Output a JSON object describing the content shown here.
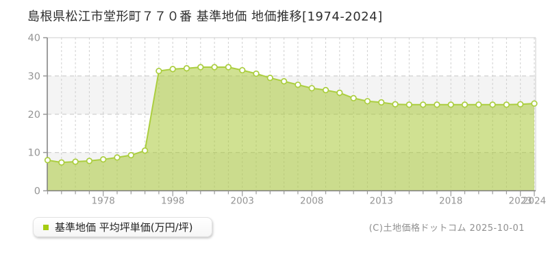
{
  "header": {
    "title": "島根県松江市堂形町７７０番 基準地価 地価推移[1974-2024]"
  },
  "legend": {
    "label": "基準地価 平均坪単価(万円/坪)",
    "marker_color": "#a5cc12"
  },
  "footer": {
    "copyright": "(C)土地価格ドットコム 2025-10-01"
  },
  "colors": {
    "area_fill": "#a9c838",
    "area_fill_opacity": "0.55",
    "line": "#abce3f",
    "point_fill": "#ffffff",
    "point_stroke": "#abce3f",
    "grid": "#cfcfcf",
    "stripe": "#f4f4f4",
    "border": "#cccccc",
    "axis": "#7d7d7d",
    "tick": "#999999",
    "axis_label": "#949494"
  },
  "chart_data": {
    "type": "area",
    "title": "島根県松江市堂形町７７０番 基準地価 地価推移[1974-2024]",
    "series_name": "基準地価 平均坪単価(万円/坪)",
    "ylabel": "万円/坪",
    "ylim": [
      0,
      40
    ],
    "yticks": [
      0,
      10,
      20,
      30,
      40
    ],
    "grid": "dashed",
    "legend_position": "bottom-left",
    "categories": [
      "1974",
      "1975",
      "1976",
      "1977",
      "1978",
      "1979",
      "1980",
      "1996",
      "1997",
      "1998",
      "1999",
      "2000",
      "2001",
      "2002",
      "2003",
      "2004",
      "2005",
      "2006",
      "2007",
      "2008",
      "2009",
      "2010",
      "2011",
      "2012",
      "2013",
      "2014",
      "2015",
      "2016",
      "2017",
      "2018",
      "2019",
      "2020",
      "2021",
      "2022",
      "2023",
      "2024"
    ],
    "values": [
      8.0,
      7.4,
      7.6,
      7.8,
      8.2,
      8.7,
      9.3,
      10.5,
      31.3,
      31.8,
      32.0,
      32.3,
      32.3,
      32.3,
      31.5,
      30.6,
      29.5,
      28.6,
      27.7,
      26.8,
      26.3,
      25.6,
      24.2,
      23.4,
      23.1,
      22.6,
      22.5,
      22.5,
      22.5,
      22.5,
      22.5,
      22.5,
      22.5,
      22.5,
      22.6,
      22.8
    ],
    "x_axis_labels": [
      "1978",
      "1998",
      "2003",
      "2008",
      "2013",
      "2018",
      "2023",
      "2024"
    ]
  }
}
